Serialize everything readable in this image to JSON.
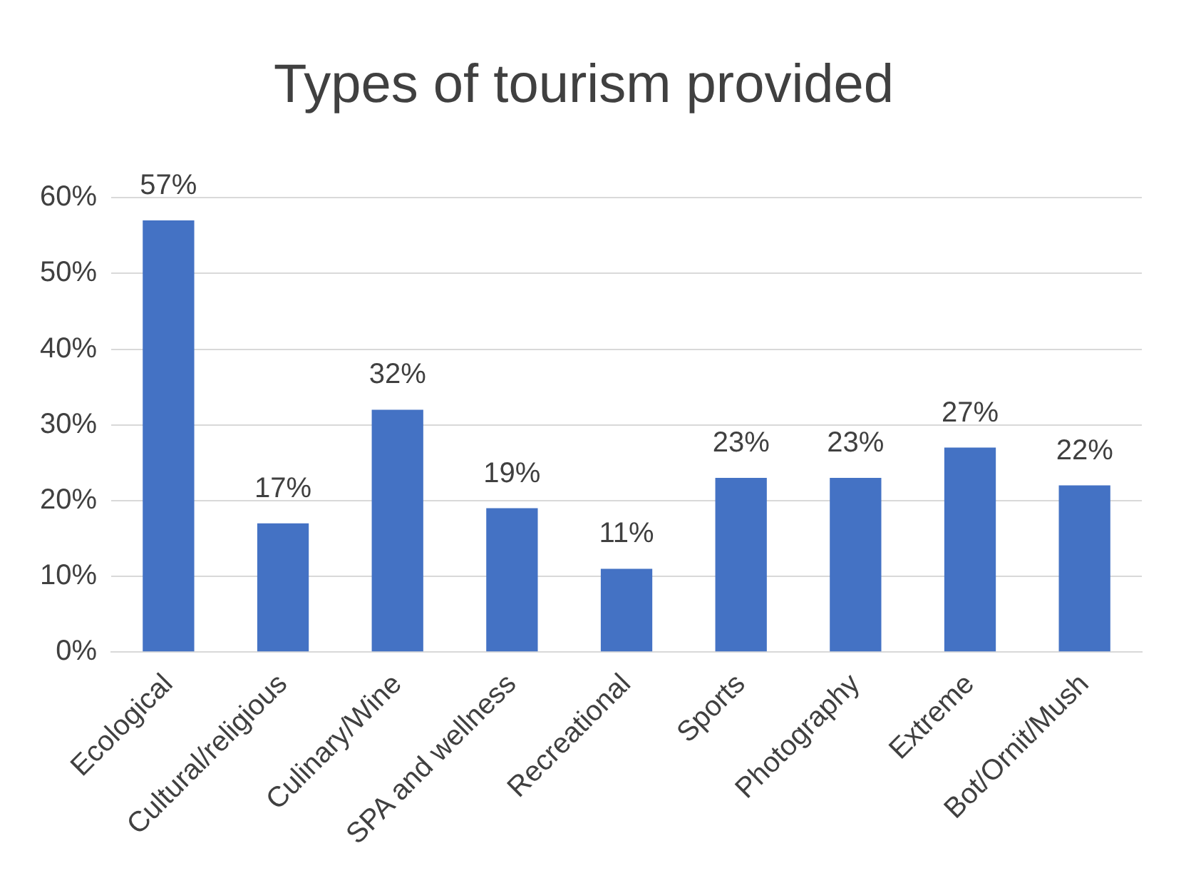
{
  "chart_data": {
    "type": "bar",
    "title": "Types of tourism provided",
    "categories": [
      "Ecological",
      "Cultural/religious",
      "Culinary/Wine",
      "SPA and wellness",
      "Recreational",
      "Sports",
      "Photography",
      "Extreme",
      "Bot/Ornit/Mush"
    ],
    "values": [
      57,
      17,
      32,
      19,
      11,
      23,
      23,
      27,
      22
    ],
    "value_labels": [
      "57%",
      "17%",
      "32%",
      "19%",
      "11%",
      "23%",
      "23%",
      "27%",
      "22%"
    ],
    "color": "#4472c4",
    "ylim": [
      0,
      60
    ],
    "yticks": [
      {
        "value": 0,
        "label": "0%"
      },
      {
        "value": 10,
        "label": "10%"
      },
      {
        "value": 20,
        "label": "20%"
      },
      {
        "value": 30,
        "label": "30%"
      },
      {
        "value": 40,
        "label": "40%"
      },
      {
        "value": 50,
        "label": "50%"
      },
      {
        "value": 60,
        "label": "60%"
      }
    ],
    "grid": "y",
    "legend": false
  }
}
